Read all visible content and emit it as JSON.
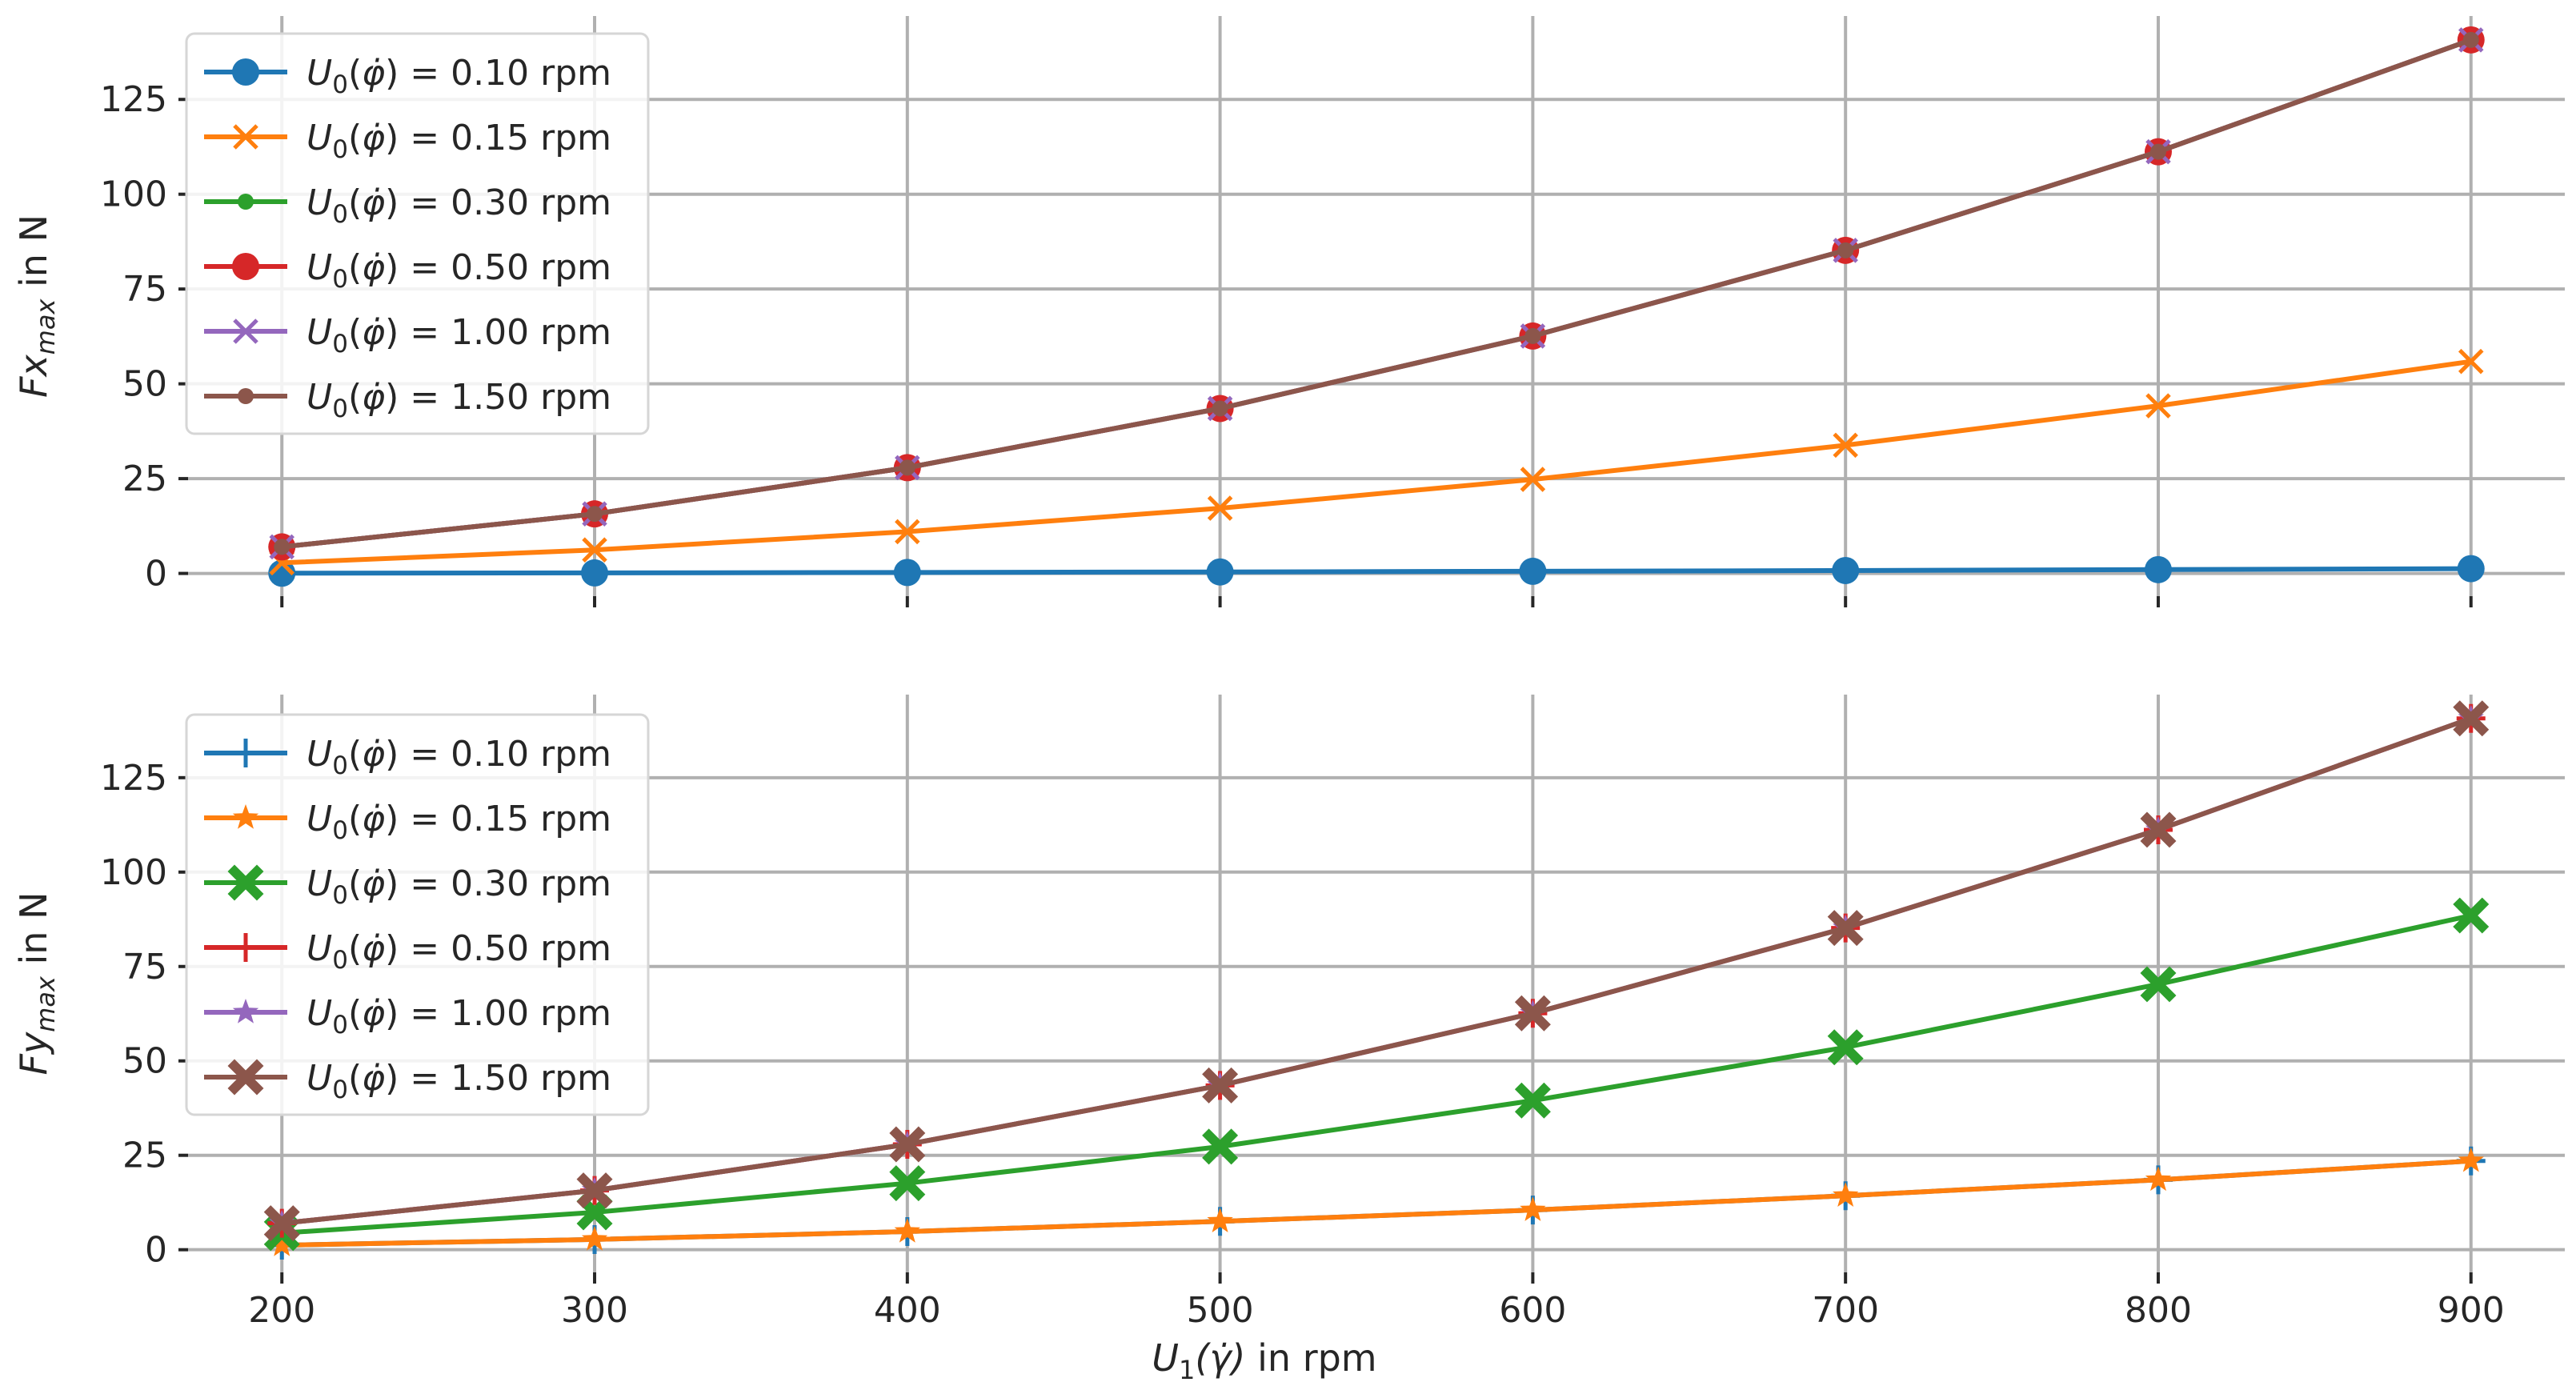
{
  "chart_data": [
    {
      "type": "line",
      "xlabel": "",
      "ylabel": "Fx_max in N",
      "ylabel_parts": {
        "base": "Fx",
        "sub": "max",
        "suffix": " in N"
      },
      "x": [
        200,
        300,
        400,
        500,
        600,
        700,
        800,
        900
      ],
      "xlim": [
        170,
        930
      ],
      "ylim": [
        -6,
        147
      ],
      "xticks": [
        200,
        300,
        400,
        500,
        600,
        700,
        800,
        900
      ],
      "yticks": [
        0,
        25,
        50,
        75,
        100,
        125
      ],
      "x_ticklabels_visible": false,
      "grid": true,
      "legend_position": "upper-left",
      "series": [
        {
          "name": "U_0(φ̇) = 0.10 rpm",
          "label_value": "0.10",
          "color": "#1f77b4",
          "marker": "circle",
          "values": [
            0.06,
            0.14,
            0.25,
            0.39,
            0.56,
            0.76,
            1.0,
            1.26
          ]
        },
        {
          "name": "U_0(φ̇) = 0.15 rpm",
          "label_value": "0.15",
          "color": "#ff7f0e",
          "marker": "x",
          "values": [
            2.8,
            6.2,
            11.0,
            17.2,
            24.8,
            33.8,
            44.2,
            55.9
          ]
        },
        {
          "name": "U_0(φ̇) = 0.30 rpm",
          "label_value": "0.30",
          "color": "#2ca02c",
          "marker": "small-circle",
          "values": [
            7.0,
            15.7,
            27.9,
            43.5,
            62.6,
            85.2,
            111.2,
            140.7
          ]
        },
        {
          "name": "U_0(φ̇) = 0.50 rpm",
          "label_value": "0.50",
          "color": "#d62728",
          "marker": "circle",
          "values": [
            7.0,
            15.7,
            27.9,
            43.5,
            62.6,
            85.2,
            111.2,
            140.7
          ]
        },
        {
          "name": "U_0(φ̇) = 1.00 rpm",
          "label_value": "1.00",
          "color": "#9467bd",
          "marker": "x",
          "values": [
            7.0,
            15.7,
            27.9,
            43.5,
            62.6,
            85.2,
            111.2,
            140.7
          ]
        },
        {
          "name": "U_0(φ̇) = 1.50 rpm",
          "label_value": "1.50",
          "color": "#8c564b",
          "marker": "small-circle",
          "values": [
            7.0,
            15.7,
            27.9,
            43.5,
            62.6,
            85.2,
            111.2,
            140.7
          ]
        }
      ]
    },
    {
      "type": "line",
      "xlabel": "U_1(γ̇) in rpm",
      "xlabel_parts": {
        "base": "U",
        "sub": "1",
        "arg": "(γ̇)",
        "suffix": " in rpm"
      },
      "ylabel": "Fy_max in N",
      "ylabel_parts": {
        "base": "Fy",
        "sub": "max",
        "suffix": " in N"
      },
      "x": [
        200,
        300,
        400,
        500,
        600,
        700,
        800,
        900
      ],
      "xlim": [
        170,
        930
      ],
      "ylim": [
        -6,
        147
      ],
      "xticks": [
        200,
        300,
        400,
        500,
        600,
        700,
        800,
        900
      ],
      "yticks": [
        0,
        25,
        50,
        75,
        100,
        125
      ],
      "x_ticklabels_visible": true,
      "grid": true,
      "legend_position": "upper-left",
      "series": [
        {
          "name": "U_0(φ̇) = 0.10 rpm",
          "label_value": "0.10",
          "color": "#1f77b4",
          "marker": "plus",
          "values": [
            1.2,
            2.7,
            4.8,
            7.5,
            10.5,
            14.3,
            18.5,
            23.5
          ]
        },
        {
          "name": "U_0(φ̇) = 0.15 rpm",
          "label_value": "0.15",
          "color": "#ff7f0e",
          "marker": "star",
          "values": [
            1.2,
            2.7,
            4.8,
            7.5,
            10.5,
            14.3,
            18.5,
            23.5
          ]
        },
        {
          "name": "U_0(φ̇) = 0.30 rpm",
          "label_value": "0.30",
          "color": "#2ca02c",
          "marker": "filled-x",
          "values": [
            4.4,
            9.9,
            17.6,
            27.3,
            39.5,
            53.6,
            70.3,
            88.5
          ]
        },
        {
          "name": "U_0(φ̇) = 0.50 rpm",
          "label_value": "0.50",
          "color": "#d62728",
          "marker": "plus",
          "values": [
            7.0,
            15.7,
            27.9,
            43.5,
            62.6,
            85.2,
            111.2,
            140.7
          ]
        },
        {
          "name": "U_0(φ̇) = 1.00 rpm",
          "label_value": "1.00",
          "color": "#9467bd",
          "marker": "star",
          "values": [
            7.0,
            15.7,
            27.9,
            43.5,
            62.6,
            85.2,
            111.2,
            140.7
          ]
        },
        {
          "name": "U_0(φ̇) = 1.50 rpm",
          "label_value": "1.50",
          "color": "#8c564b",
          "marker": "filled-x",
          "values": [
            7.0,
            15.7,
            27.9,
            43.5,
            62.6,
            85.2,
            111.2,
            140.7
          ]
        }
      ]
    }
  ]
}
